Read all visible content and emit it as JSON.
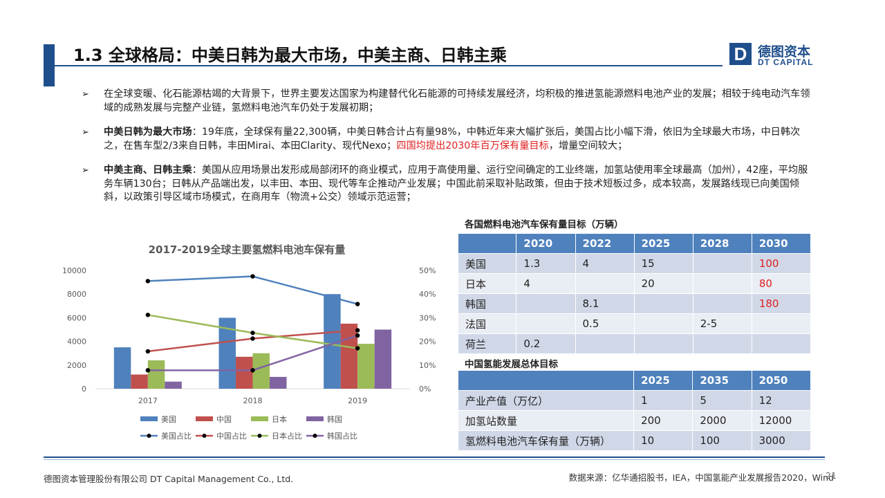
{
  "title": "1.3 全球格局：中美日韩为最大市场，中美主商、日韩主乘",
  "logo": {
    "mark": "D",
    "cn": "德图资本",
    "en": "DT CAPITAL"
  },
  "bullets": [
    {
      "arrow": "➢",
      "bold": "",
      "text": "在全球变暖、化石能源枯竭的大背景下，世界主要发达国家为构建替代化石能源的可持续发展经济，均积极的推进氢能源燃料电池产业的发展；相较于纯电动汽车领域的成熟发展与完整产业链，氢燃料电池汽车仍处于发展初期；",
      "red": "",
      "tail": ""
    },
    {
      "arrow": "➢",
      "bold": "中美日韩为最大市场",
      "text": "：19年底，全球保有量22,300辆，中美日韩合计占有量98%，中韩近年来大幅扩张后，美国占比小幅下滑，依旧为全球最大市场，中日韩次之，在售车型2/3来自日韩，丰田Mirai、本田Clarity、现代Nexo；",
      "red": "四国均提出2030年百万保有量目标",
      "tail": "，增量空间较大；"
    },
    {
      "arrow": "➢",
      "bold": "中美主商、日韩主乘",
      "text": "：美国从应用场景出发形成局部闭环的商业模式，应用于高使用量、运行空间确定的工业终端，加氢站使用率全球最高（加州），42座，平均服务车辆130台；日韩从产品端出发，以丰田、本田、现代等车企推动产业发展；中国此前采取补贴政策，但由于技术短板过多，成本较高，发展路线现已向美国倾斜，以政策引导区域市场模式，在商用车（物流+公交）领域示范运营；",
      "red": "",
      "tail": ""
    }
  ],
  "chart_data": {
    "type": "bar",
    "title": "2017-2019全球主要氢燃料电池车保有量",
    "categories": [
      "2017",
      "2018",
      "2019"
    ],
    "ylim": [
      0,
      10000
    ],
    "yticks": [
      "0",
      "2000",
      "4000",
      "6000",
      "8000",
      "10000"
    ],
    "y2lim": [
      0,
      50
    ],
    "y2ticks": [
      "0%",
      "10%",
      "20%",
      "30%",
      "40%",
      "50%"
    ],
    "series": [
      {
        "name": "美国",
        "color": "#4f81bd",
        "values": [
          3500,
          6000,
          8000
        ]
      },
      {
        "name": "中国",
        "color": "#c0504d",
        "values": [
          1200,
          2700,
          5500
        ]
      },
      {
        "name": "日本",
        "color": "#9bbb59",
        "values": [
          2400,
          3000,
          3800
        ]
      },
      {
        "name": "韩国",
        "color": "#8064a2",
        "values": [
          600,
          1000,
          5000
        ]
      }
    ],
    "line_series": [
      {
        "name": "美国占比",
        "color": "#4f81bd",
        "values": [
          45.5,
          47.5,
          35.8
        ]
      },
      {
        "name": "中国占比",
        "color": "#c0504d",
        "values": [
          15.8,
          21.2,
          24.7
        ]
      },
      {
        "name": "日本占比",
        "color": "#9bbb59",
        "values": [
          31.2,
          23.6,
          17.1
        ]
      },
      {
        "name": "韩国占比",
        "color": "#8064a2",
        "values": [
          7.8,
          7.8,
          22.5
        ]
      }
    ]
  },
  "table1": {
    "caption": "各国燃料电池汽车保有量目标（万辆）",
    "headers": [
      "",
      "2020",
      "2022",
      "2025",
      "2028",
      "2030"
    ],
    "rows": [
      [
        "美国",
        "1.3",
        "4",
        "15",
        "",
        "100"
      ],
      [
        "日本",
        "4",
        "",
        "20",
        "",
        "80"
      ],
      [
        "韩国",
        "",
        "8.1",
        "",
        "",
        "180"
      ],
      [
        "法国",
        "",
        "0.5",
        "",
        "2-5",
        ""
      ],
      [
        "荷兰",
        "0.2",
        "",
        "",
        "",
        ""
      ]
    ],
    "highlight_color": "#e02020"
  },
  "table2": {
    "caption": "中国氢能发展总体目标",
    "headers": [
      "",
      "2025",
      "2035",
      "2050"
    ],
    "rows": [
      [
        "产业产值（万亿）",
        "1",
        "5",
        "12"
      ],
      [
        "加氢站数量",
        "200",
        "2000",
        "12000"
      ],
      [
        "氢燃料电池汽车保有量（万辆）",
        "10",
        "100",
        "3000"
      ]
    ]
  },
  "footer": {
    "company": "德图资本管理股份有限公司  DT Capital Management  Co., Ltd.",
    "source": "数据来源：亿华通招股书，IEA，中国氢能产业发展报告2020，Wind",
    "page": "21"
  }
}
